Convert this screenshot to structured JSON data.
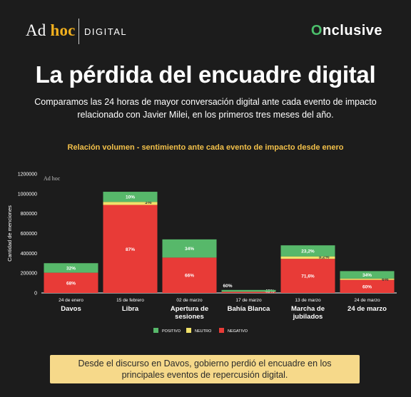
{
  "header": {
    "brand_left_ad": "Ad",
    "brand_left_hoc": "hoc",
    "brand_left_digital": "DIGITAL",
    "brand_right_o": "O",
    "brand_right_rest": "nclusive"
  },
  "title": "La pérdida del encuadre digital",
  "subtitle": "Comparamos las 24 horas de mayor conversación digital ante cada evento de impacto relacionado con Javier Milei, en los primeros tres meses del año.",
  "chart_title": "Relación volumen - sentimiento ante cada evento de impacto desde enero",
  "watermark": "Ad hoc",
  "note": "Desde el discurso en Davos, gobierno perdió el encuadre en los principales eventos de repercusión digital.",
  "colors": {
    "positivo": "#57b86a",
    "neutro": "#f0e16a",
    "negativo": "#e83b37",
    "background": "#1c1c1c",
    "note_bg": "#f6d98a"
  },
  "chart_data": {
    "type": "bar",
    "stacked": true,
    "title": "Relación volumen - sentimiento ante cada evento de impacto desde enero",
    "ylabel": "Cantidad de menciones",
    "ylim": [
      0,
      1200000
    ],
    "yticks": [
      "0",
      "200000",
      "400000",
      "600000",
      "800000",
      "1000000",
      "1200000"
    ],
    "ytick_values": [
      0,
      200000,
      400000,
      600000,
      800000,
      1000000,
      1200000
    ],
    "legend_position": "bottom",
    "events": [
      {
        "date": "24 de enero",
        "name": "Davos",
        "total": 300000
      },
      {
        "date": "15 de febrero",
        "name": "Libra",
        "total": 1020000
      },
      {
        "date": "02 de marzo",
        "name": "Apertura de sesiones",
        "total": 540000
      },
      {
        "date": "17 de marzo",
        "name": "Bahía Blanca",
        "total": 30000
      },
      {
        "date": "13 de marzo",
        "name": "Marcha de jubilados",
        "total": 480000
      },
      {
        "date": "24 de marzo",
        "name": "24 de marzo",
        "total": 220000
      }
    ],
    "series": [
      {
        "name": "POSITIVO",
        "labels": [
          "32%",
          "10%",
          "34%",
          "60%",
          "23,2%",
          "34%"
        ],
        "values": [
          96000,
          102000,
          183600,
          18000,
          111360,
          74800
        ]
      },
      {
        "name": "NEUTRO",
        "labels": [
          "",
          "3%",
          "",
          "",
          "5,2%",
          "6%"
        ],
        "values": [
          0,
          30600,
          0,
          0,
          24960,
          13200
        ]
      },
      {
        "name": "NEGATIVO",
        "labels": [
          "68%",
          "87%",
          "66%",
          "40%",
          "71,6%",
          "60%"
        ],
        "values": [
          204000,
          887400,
          356400,
          12000,
          343680,
          132000
        ]
      }
    ]
  }
}
